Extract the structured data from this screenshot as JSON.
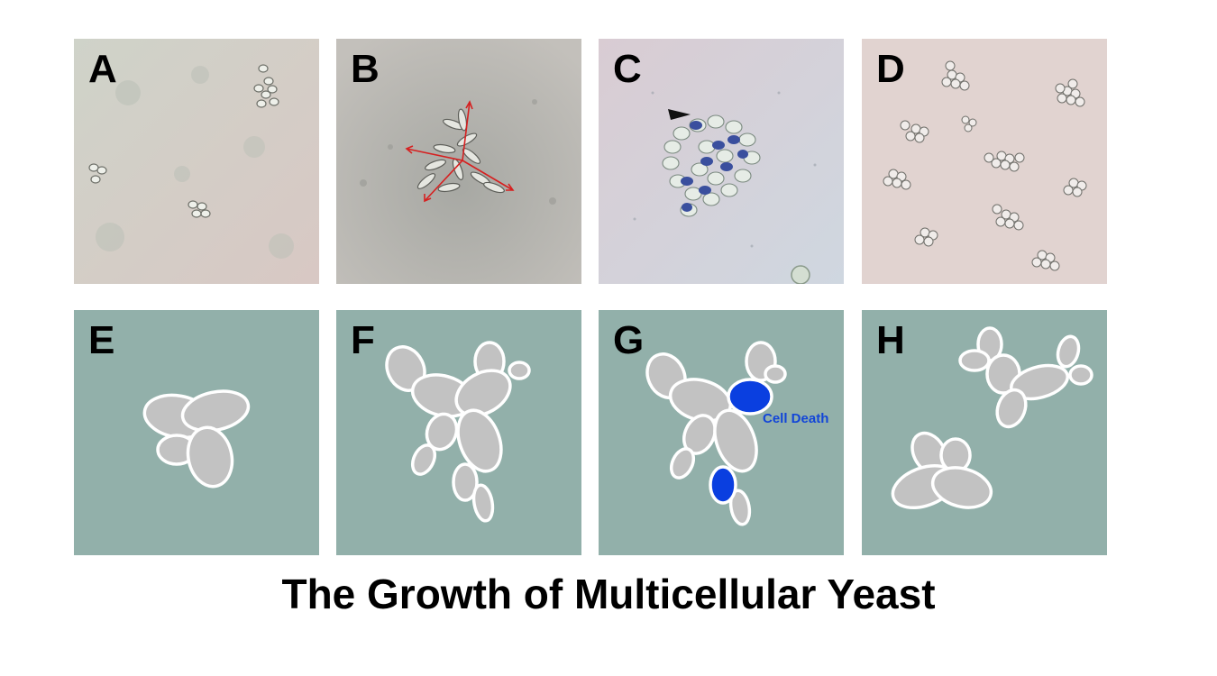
{
  "title": "The Growth of Multicellular Yeast",
  "panels": {
    "A": {
      "label": "A"
    },
    "B": {
      "label": "B"
    },
    "C": {
      "label": "C"
    },
    "D": {
      "label": "D"
    },
    "E": {
      "label": "E"
    },
    "F": {
      "label": "F"
    },
    "G": {
      "label": "G",
      "annotation": "Cell Death"
    },
    "H": {
      "label": "H"
    }
  },
  "colors": {
    "diagram_background": "#92b0aa",
    "cell_fill": "#c2c2c2",
    "cell_outline": "#ffffff",
    "dead_cell": "#0a3fe0",
    "annotation_text": "#1245d8",
    "growth_arrows": "#d62020",
    "stained_cells": "#3a4f9e"
  }
}
